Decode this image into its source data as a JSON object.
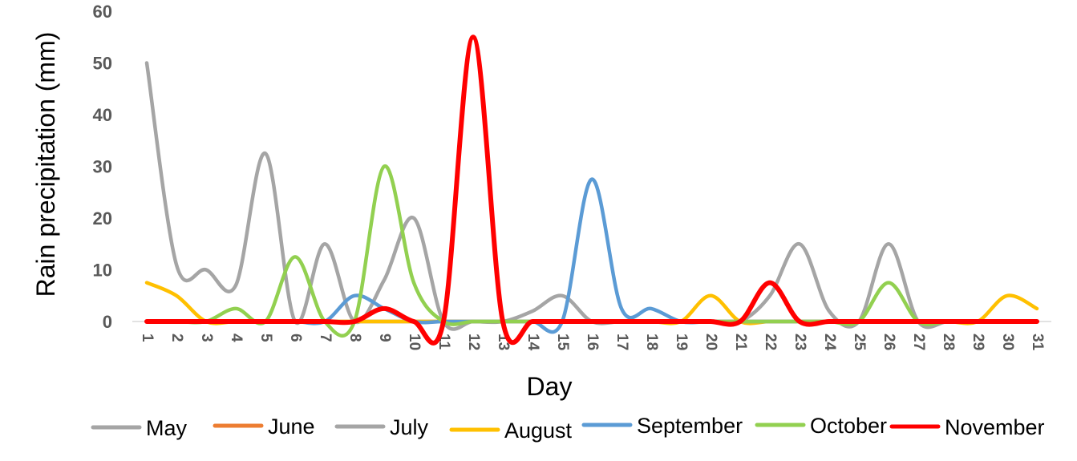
{
  "chart_data": {
    "type": "line",
    "xlabel": "Day",
    "ylabel": "Rain precipitation (mm)",
    "ylim": [
      0,
      60
    ],
    "yticks": [
      0,
      10,
      20,
      30,
      40,
      50,
      60
    ],
    "x": [
      1,
      2,
      3,
      4,
      5,
      6,
      7,
      8,
      9,
      10,
      11,
      12,
      13,
      14,
      15,
      16,
      17,
      18,
      19,
      20,
      21,
      22,
      23,
      24,
      25,
      26,
      27,
      28,
      29,
      30,
      31
    ],
    "grid": false,
    "legend_position": "bottom",
    "series": [
      {
        "name": "May",
        "color": "#A5A5A5",
        "values": [
          50,
          11,
          10,
          7,
          32.5,
          0,
          15,
          0,
          8,
          20,
          0,
          0,
          0,
          2,
          5,
          0,
          0,
          0,
          0,
          0,
          0,
          0,
          0,
          0,
          0,
          0,
          0,
          0,
          0,
          0,
          0
        ]
      },
      {
        "name": "June",
        "color": "#ED7D31",
        "values": [
          0,
          0,
          0,
          0,
          0,
          0,
          0,
          0,
          0,
          0,
          0,
          0,
          0,
          0,
          0,
          0,
          0,
          0,
          0,
          0,
          0,
          0,
          0,
          0,
          0,
          0,
          0,
          0,
          0,
          0,
          0
        ]
      },
      {
        "name": "July",
        "color": "#A5A5A5",
        "values": [
          0,
          0,
          0,
          0,
          0,
          0,
          0,
          0,
          0,
          0,
          0,
          0,
          0,
          0,
          0,
          0,
          0,
          0,
          0,
          0,
          0,
          5,
          15,
          2,
          0,
          15,
          0,
          0,
          0,
          0,
          0
        ]
      },
      {
        "name": "August",
        "color": "#FFC000",
        "values": [
          7.5,
          5,
          0,
          0,
          0,
          0,
          0,
          0,
          0,
          0,
          0,
          0,
          0,
          0,
          0,
          0,
          0,
          0,
          0,
          5,
          0,
          0,
          0,
          0,
          0,
          0,
          0,
          0,
          0,
          5,
          2.5
        ]
      },
      {
        "name": "September",
        "color": "#5B9BD5",
        "values": [
          0,
          0,
          0,
          0,
          0,
          0,
          0,
          5,
          2.5,
          0,
          0,
          0,
          0,
          0,
          0,
          27.5,
          2.5,
          2.5,
          0,
          0,
          0,
          0,
          0,
          0,
          0,
          0,
          0,
          0,
          0,
          0,
          0
        ]
      },
      {
        "name": "October",
        "color": "#92D050",
        "values": [
          0,
          0,
          0,
          2.5,
          0,
          12.5,
          0,
          0,
          30,
          7.5,
          0,
          0,
          0,
          0,
          0,
          0,
          0,
          0,
          0,
          0,
          0,
          0,
          0,
          0,
          0,
          7.5,
          0,
          0,
          0,
          0,
          0
        ]
      },
      {
        "name": "November",
        "color": "#FF0000",
        "values": [
          0,
          0,
          0,
          0,
          0,
          0,
          0,
          0,
          2.5,
          0,
          0,
          55,
          0,
          0,
          0,
          0,
          0,
          0,
          0,
          0,
          0,
          7.5,
          0,
          0,
          0,
          0,
          0,
          0,
          0,
          0,
          0
        ]
      }
    ]
  }
}
